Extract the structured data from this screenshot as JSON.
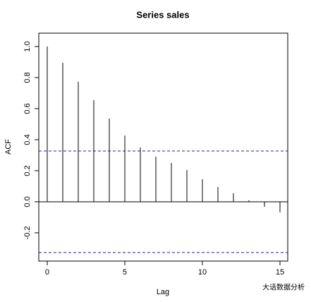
{
  "chart_data": {
    "type": "acf",
    "title": "Series sales",
    "xlabel": "Lag",
    "ylabel": "ACF",
    "x": [
      0,
      1,
      2,
      3,
      4,
      5,
      6,
      7,
      8,
      9,
      10,
      11,
      12,
      13,
      14,
      15
    ],
    "values": [
      1.0,
      0.895,
      0.773,
      0.655,
      0.536,
      0.427,
      0.35,
      0.291,
      0.25,
      0.205,
      0.145,
      0.095,
      0.055,
      0.01,
      -0.032,
      -0.068
    ],
    "color": "#000000",
    "confidence_bounds": [
      0.327,
      -0.327
    ],
    "bound_color": "#2020a0",
    "xlim": [
      -0.545,
      15.5
    ],
    "ylim": [
      -0.382,
      1.086
    ],
    "xticks": [
      0,
      5,
      10,
      15
    ],
    "yticks": [
      {
        "value": 0,
        "label": "0.0"
      },
      0.2,
      0.4,
      0.6,
      0.8,
      {
        "value": 1,
        "label": "1.0"
      },
      -0.2
    ],
    "watermark": "大话数据分析"
  }
}
